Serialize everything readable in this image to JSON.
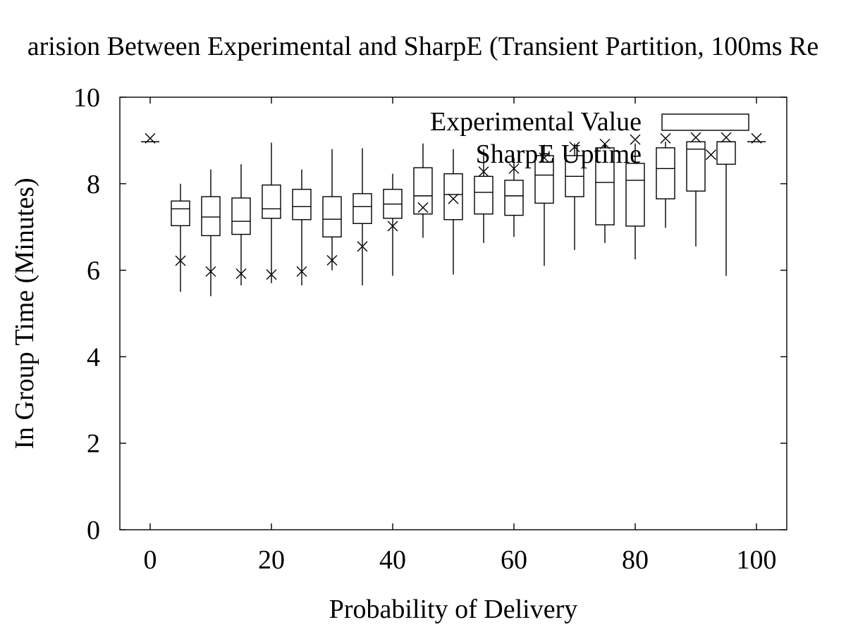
{
  "chart_data": {
    "type": "boxplot",
    "title": "arision Between Experimental and SharpE (Transient Partition, 100ms Re",
    "xlabel": "Probability of Delivery",
    "ylabel": "In Group Time (Minutes)",
    "xlim": [
      -5,
      105
    ],
    "ylim": [
      0,
      10
    ],
    "xticks": [
      0,
      20,
      40,
      60,
      80,
      100
    ],
    "yticks": [
      0,
      2,
      4,
      6,
      8,
      10
    ],
    "grid": false,
    "legend": {
      "position": "top-right",
      "entries": [
        "Experimental Value",
        "SharpE Uptime"
      ]
    },
    "series": [
      {
        "name": "Experimental Value",
        "style": "box",
        "data": [
          {
            "x": 0,
            "min": 8.97,
            "q1": 8.97,
            "median": 8.97,
            "q3": 8.97,
            "max": 8.97
          },
          {
            "x": 5,
            "min": 5.5,
            "q1": 7.03,
            "median": 7.42,
            "q3": 7.6,
            "max": 8.0
          },
          {
            "x": 10,
            "min": 5.4,
            "q1": 6.8,
            "median": 7.23,
            "q3": 7.7,
            "max": 8.33
          },
          {
            "x": 15,
            "min": 5.65,
            "q1": 6.83,
            "median": 7.13,
            "q3": 7.67,
            "max": 8.45
          },
          {
            "x": 20,
            "min": 5.7,
            "q1": 7.2,
            "median": 7.42,
            "q3": 7.97,
            "max": 8.95
          },
          {
            "x": 25,
            "min": 5.65,
            "q1": 7.17,
            "median": 7.47,
            "q3": 7.87,
            "max": 8.33
          },
          {
            "x": 30,
            "min": 6.0,
            "q1": 6.77,
            "median": 7.18,
            "q3": 7.7,
            "max": 8.8
          },
          {
            "x": 35,
            "min": 5.65,
            "q1": 7.08,
            "median": 7.47,
            "q3": 7.77,
            "max": 8.82
          },
          {
            "x": 40,
            "min": 5.87,
            "q1": 7.2,
            "median": 7.53,
            "q3": 7.87,
            "max": 8.23
          },
          {
            "x": 45,
            "min": 6.75,
            "q1": 7.3,
            "median": 7.72,
            "q3": 8.37,
            "max": 8.93
          },
          {
            "x": 50,
            "min": 5.9,
            "q1": 7.17,
            "median": 7.75,
            "q3": 8.23,
            "max": 8.8
          },
          {
            "x": 55,
            "min": 6.63,
            "q1": 7.3,
            "median": 7.8,
            "q3": 8.17,
            "max": 8.8
          },
          {
            "x": 60,
            "min": 6.77,
            "q1": 7.27,
            "median": 7.72,
            "q3": 8.08,
            "max": 8.6
          },
          {
            "x": 65,
            "min": 6.1,
            "q1": 7.55,
            "median": 8.2,
            "q3": 8.65,
            "max": 8.9
          },
          {
            "x": 70,
            "min": 6.47,
            "q1": 7.7,
            "median": 8.17,
            "q3": 8.65,
            "max": 8.93
          },
          {
            "x": 75,
            "min": 6.63,
            "q1": 7.05,
            "median": 8.03,
            "q3": 8.83,
            "max": 8.93
          },
          {
            "x": 80,
            "min": 6.25,
            "q1": 7.02,
            "median": 8.08,
            "q3": 8.47,
            "max": 8.93
          },
          {
            "x": 85,
            "min": 6.98,
            "q1": 7.65,
            "median": 8.35,
            "q3": 8.83,
            "max": 8.97
          },
          {
            "x": 90,
            "min": 6.55,
            "q1": 7.83,
            "median": 8.8,
            "q3": 8.97,
            "max": 8.97
          },
          {
            "x": 95,
            "min": 5.87,
            "q1": 8.45,
            "median": 8.97,
            "q3": 8.97,
            "max": 8.97
          },
          {
            "x": 100,
            "min": 8.97,
            "q1": 8.97,
            "median": 8.97,
            "q3": 8.97,
            "max": 8.97
          }
        ]
      },
      {
        "name": "SharpE Uptime",
        "style": "x-marker",
        "x": [
          0,
          5,
          10,
          15,
          20,
          25,
          30,
          35,
          40,
          45,
          50,
          55,
          60,
          65,
          70,
          75,
          80,
          85,
          90,
          92.5,
          95,
          100
        ],
        "y": [
          9.05,
          6.22,
          5.97,
          5.92,
          5.9,
          5.97,
          6.23,
          6.55,
          7.02,
          7.45,
          7.65,
          8.28,
          8.35,
          8.6,
          8.85,
          8.92,
          9.02,
          9.05,
          9.07,
          8.67,
          9.07,
          9.05
        ]
      }
    ]
  }
}
